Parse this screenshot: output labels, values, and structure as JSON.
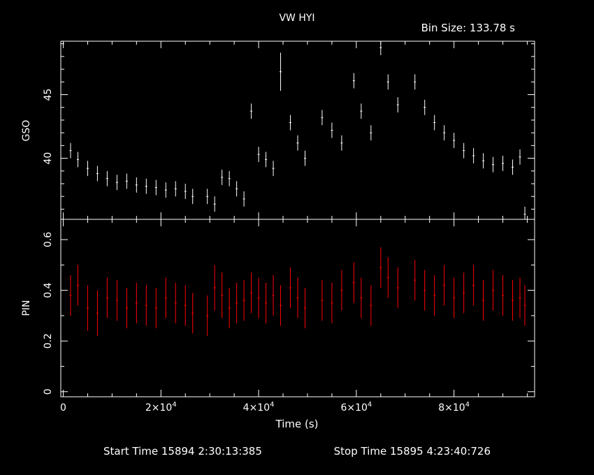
{
  "colors": {
    "background": "#000000",
    "axes": "#ffffff",
    "gso": "#ffffff",
    "pin": "#ff0000"
  },
  "header": {
    "title": "VW HYI",
    "bin_size": "Bin Size: 133.78 s"
  },
  "footer": {
    "start_time": "Start Time 15894  2:30:13:385",
    "stop_time": "Stop Time 15895  4:23:40:726"
  },
  "chart_data": [
    {
      "type": "scatter",
      "panel": "top",
      "ylabel": "GSO",
      "x_unit": "s",
      "xlim": [
        -500,
        96500
      ],
      "ylim": [
        35.2,
        49.2
      ],
      "yticks": [
        40,
        45
      ],
      "yminor": [
        36,
        37,
        38,
        39,
        41,
        42,
        43,
        44,
        46,
        47,
        48,
        49
      ],
      "series": [
        {
          "color": "#ffffff",
          "x": [
            1500,
            3000,
            5000,
            7000,
            9000,
            11000,
            13000,
            15000,
            17000,
            19000,
            21000,
            23000,
            25000,
            26500,
            29500,
            31000,
            32500,
            34000,
            35500,
            37000,
            38500,
            40000,
            41500,
            43000,
            44500,
            46500,
            48000,
            49500,
            53000,
            55000,
            57000,
            59500,
            61000,
            63000,
            65000,
            66500,
            68500,
            72000,
            74000,
            76000,
            78000,
            80000,
            82000,
            84000,
            86000,
            88000,
            90000,
            92000,
            93500,
            94500
          ],
          "y": [
            40.6,
            39.9,
            39.2,
            38.8,
            38.4,
            38.1,
            38.2,
            37.9,
            37.8,
            37.7,
            37.5,
            37.6,
            37.4,
            37.0,
            37.0,
            36.4,
            38.5,
            38.4,
            37.6,
            36.8,
            43.7,
            40.3,
            39.9,
            39.2,
            46.8,
            42.8,
            41.2,
            40.0,
            43.2,
            42.2,
            41.2,
            46.1,
            43.7,
            42.0,
            48.7,
            46.0,
            44.2,
            46.0,
            44.0,
            42.8,
            42.0,
            41.4,
            40.6,
            40.2,
            39.8,
            39.5,
            39.6,
            39.3,
            40.1,
            35.6
          ],
          "err": [
            0.6,
            0.6,
            0.6,
            0.6,
            0.6,
            0.6,
            0.6,
            0.6,
            0.6,
            0.6,
            0.6,
            0.6,
            0.6,
            0.6,
            0.6,
            0.6,
            0.6,
            0.6,
            0.6,
            0.6,
            0.6,
            0.6,
            0.6,
            0.6,
            1.5,
            0.6,
            0.6,
            0.6,
            0.6,
            0.6,
            0.6,
            0.6,
            0.6,
            0.6,
            0.6,
            0.6,
            0.6,
            0.6,
            0.6,
            0.6,
            0.6,
            0.6,
            0.6,
            0.6,
            0.6,
            0.6,
            0.6,
            0.6,
            0.6,
            0.6
          ]
        }
      ]
    },
    {
      "type": "scatter",
      "panel": "bottom",
      "ylabel": "PIN",
      "xlabel": "Time (s)",
      "x_unit": "s",
      "xlim": [
        -500,
        96500
      ],
      "ylim": [
        -0.02,
        0.68
      ],
      "yticks": [
        0,
        0.2,
        0.4,
        0.6
      ],
      "ytick_labels": [
        "0",
        "0.2",
        "0.4",
        "0.6"
      ],
      "yminor": [
        0.1,
        0.3,
        0.5
      ],
      "xticks": [
        0,
        20000,
        40000,
        60000,
        80000
      ],
      "xtick_labels": [
        {
          "mantissa": "0",
          "exp": ""
        },
        {
          "mantissa": "2×10",
          "exp": "4"
        },
        {
          "mantissa": "4×10",
          "exp": "4"
        },
        {
          "mantissa": "6×10",
          "exp": "4"
        },
        {
          "mantissa": "8×10",
          "exp": "4"
        }
      ],
      "xminor": [
        5000,
        10000,
        15000,
        25000,
        30000,
        35000,
        45000,
        50000,
        55000,
        65000,
        70000,
        75000,
        85000,
        90000,
        95000
      ],
      "series": [
        {
          "color": "#ff0000",
          "x": [
            1500,
            3000,
            5000,
            7000,
            9000,
            11000,
            13000,
            15000,
            17000,
            19000,
            21000,
            23000,
            25000,
            26500,
            29500,
            31000,
            32500,
            34000,
            35500,
            37000,
            38500,
            40000,
            41500,
            43000,
            44500,
            46500,
            48000,
            49500,
            53000,
            55000,
            57000,
            59500,
            61000,
            63000,
            65000,
            66500,
            68500,
            72000,
            74000,
            76000,
            78000,
            80000,
            82000,
            84000,
            86000,
            88000,
            90000,
            92000,
            93500,
            94500
          ],
          "y": [
            0.38,
            0.42,
            0.33,
            0.31,
            0.37,
            0.36,
            0.33,
            0.35,
            0.34,
            0.33,
            0.37,
            0.35,
            0.34,
            0.31,
            0.3,
            0.41,
            0.38,
            0.33,
            0.35,
            0.36,
            0.39,
            0.37,
            0.35,
            0.38,
            0.34,
            0.41,
            0.37,
            0.33,
            0.36,
            0.35,
            0.4,
            0.43,
            0.37,
            0.34,
            0.49,
            0.45,
            0.41,
            0.44,
            0.4,
            0.38,
            0.42,
            0.37,
            0.39,
            0.42,
            0.36,
            0.4,
            0.38,
            0.36,
            0.37,
            0.34
          ],
          "err": [
            0.08,
            0.08,
            0.09,
            0.09,
            0.08,
            0.08,
            0.08,
            0.08,
            0.08,
            0.08,
            0.08,
            0.08,
            0.08,
            0.08,
            0.08,
            0.09,
            0.09,
            0.08,
            0.08,
            0.08,
            0.08,
            0.08,
            0.08,
            0.08,
            0.08,
            0.08,
            0.08,
            0.08,
            0.08,
            0.08,
            0.08,
            0.08,
            0.08,
            0.08,
            0.08,
            0.08,
            0.08,
            0.08,
            0.08,
            0.08,
            0.08,
            0.08,
            0.08,
            0.08,
            0.08,
            0.08,
            0.08,
            0.08,
            0.08,
            0.08
          ]
        }
      ]
    }
  ]
}
